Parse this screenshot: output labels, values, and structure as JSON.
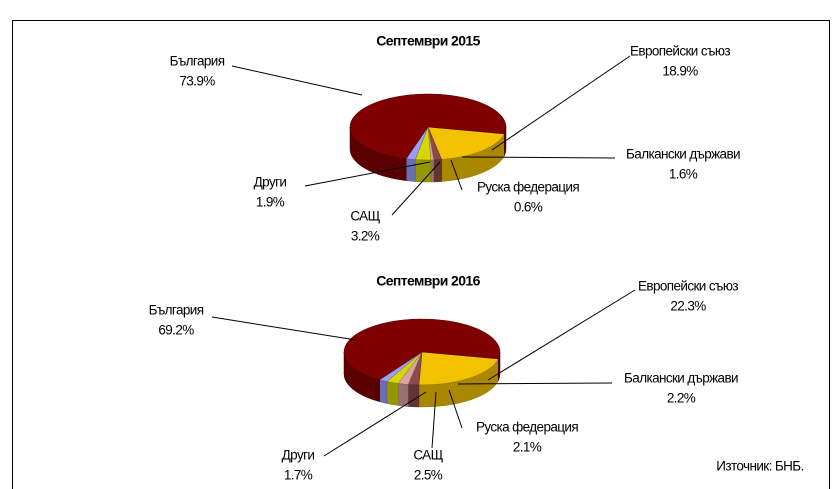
{
  "chart_data": [
    {
      "type": "pie",
      "title": "Септември 2015",
      "categories": [
        "Европейски съюз",
        "Балкански държави",
        "Руска федерация",
        "САЩ",
        "Други",
        "България"
      ],
      "values": [
        18.9,
        1.6,
        0.6,
        3.2,
        1.9,
        73.9
      ],
      "value_labels": [
        "18.9%",
        "1.6%",
        "0.6%",
        "3.2%",
        "1.9%",
        "73.9%"
      ],
      "colors": [
        "#f2c200",
        "#8c4a4a",
        "#d9a3a3",
        "#d6d600",
        "#9c9cff",
        "#800000"
      ]
    },
    {
      "type": "pie",
      "title": "Септември 2016",
      "categories": [
        "Европейски съюз",
        "Балкански държави",
        "Руска федерация",
        "САЩ",
        "Други",
        "България"
      ],
      "values": [
        22.3,
        2.2,
        2.1,
        2.5,
        1.7,
        69.2
      ],
      "value_labels": [
        "22.3%",
        "2.2%",
        "2.1%",
        "2.5%",
        "1.7%",
        "69.2%"
      ],
      "colors": [
        "#f2c200",
        "#8c4a4a",
        "#d9a3a3",
        "#d6d600",
        "#9c9cff",
        "#800000"
      ]
    }
  ],
  "source": "Източник: БНБ."
}
